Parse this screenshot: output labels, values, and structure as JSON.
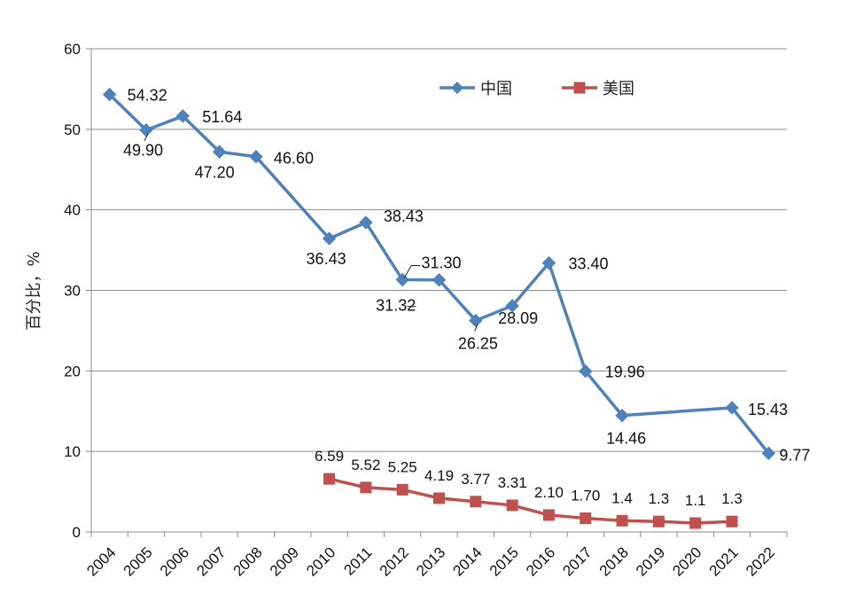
{
  "chart_data": {
    "type": "line",
    "ylabel": "百分比，%",
    "ylim": [
      0,
      60
    ],
    "yticks": [
      "0",
      "10",
      "20",
      "30",
      "40",
      "50",
      "60"
    ],
    "categories": [
      "2004",
      "2005",
      "2006",
      "2007",
      "2008",
      "2009",
      "2010",
      "2011",
      "2012",
      "2013",
      "2014",
      "2015",
      "2016",
      "2017",
      "2018",
      "2019",
      "2020",
      "2021",
      "2022"
    ],
    "legend_position": "top-right",
    "grid": "horizontal",
    "series": [
      {
        "name": "中国",
        "color": "#4f81bd",
        "marker": "diamond",
        "points": [
          {
            "x": "2004",
            "y": 54.32,
            "label": "54.32"
          },
          {
            "x": "2005",
            "y": 49.9,
            "label": "49.90"
          },
          {
            "x": "2006",
            "y": 51.64,
            "label": "51.64"
          },
          {
            "x": "2007",
            "y": 47.2,
            "label": "47.20"
          },
          {
            "x": "2008",
            "y": 46.6,
            "label": "46.60"
          },
          {
            "x": "2010",
            "y": 36.43,
            "label": "36.43"
          },
          {
            "x": "2011",
            "y": 38.43,
            "label": "38.43"
          },
          {
            "x": "2012",
            "y": 31.32,
            "label": "31.32"
          },
          {
            "x": "2013",
            "y": 31.3,
            "label": "31.30"
          },
          {
            "x": "2014",
            "y": 26.25,
            "label": "26.25"
          },
          {
            "x": "2015",
            "y": 28.09,
            "label": "28.09"
          },
          {
            "x": "2016",
            "y": 33.4,
            "label": "33.40"
          },
          {
            "x": "2017",
            "y": 19.96,
            "label": "19.96"
          },
          {
            "x": "2018",
            "y": 14.46,
            "label": "14.46"
          },
          {
            "x": "2021",
            "y": 15.43,
            "label": "15.43"
          },
          {
            "x": "2022",
            "y": 9.77,
            "label": "9.77"
          }
        ]
      },
      {
        "name": "美国",
        "color": "#c0504d",
        "marker": "square",
        "points": [
          {
            "x": "2010",
            "y": 6.59,
            "label": "6.59"
          },
          {
            "x": "2011",
            "y": 5.52,
            "label": "5.52"
          },
          {
            "x": "2012",
            "y": 5.25,
            "label": "5.25"
          },
          {
            "x": "2013",
            "y": 4.19,
            "label": "4.19"
          },
          {
            "x": "2014",
            "y": 3.77,
            "label": "3.77"
          },
          {
            "x": "2015",
            "y": 3.31,
            "label": "3.31"
          },
          {
            "x": "2016",
            "y": 2.1,
            "label": "2.10"
          },
          {
            "x": "2017",
            "y": 1.7,
            "label": "1.70"
          },
          {
            "x": "2018",
            "y": 1.4,
            "label": "1.4"
          },
          {
            "x": "2019",
            "y": 1.3,
            "label": "1.3"
          },
          {
            "x": "2020",
            "y": 1.1,
            "label": "1.1"
          },
          {
            "x": "2021",
            "y": 1.3,
            "label": "1.3"
          }
        ]
      }
    ]
  }
}
